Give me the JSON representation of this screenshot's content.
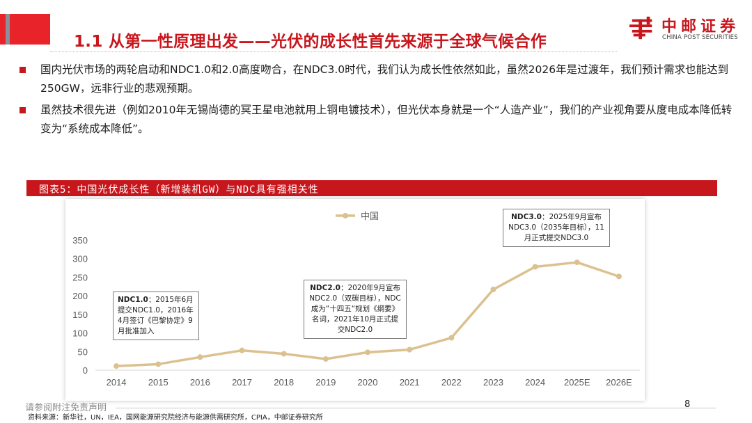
{
  "title": "1.1 从第一性原理出发——光伏的成长性首先来源于全球气候合作",
  "logo": {
    "cn": "中邮证券",
    "en": "CHINA POST SECURITIES"
  },
  "bullets": [
    "国内光伏市场的两轮启动和NDC1.0和2.0高度吻合，在NDC3.0时代，我们认为成长性依然如此，虽然2026年是过渡年，我们预计需求也能达到250GW，远非行业的悲观预期。",
    "虽然技术很先进（例如2010年无锡尚德的冥王星电池就用上铜电镀技术），但光伏本身就是一个“人造产业”，我们的产业视角要从度电成本降低转变为“系统成本降低”。"
  ],
  "figure_title": "图表5：中国光伏成长性（新增装机GW）与NDC具有强相关性",
  "chart_data": {
    "type": "line",
    "categories": [
      "2014",
      "2015",
      "2016",
      "2017",
      "2018",
      "2019",
      "2020",
      "2021",
      "2022",
      "2023",
      "2024",
      "2025E",
      "2026E"
    ],
    "series": [
      {
        "name": "中国",
        "values": [
          11,
          16,
          35,
          53,
          44,
          30,
          48,
          55,
          87,
          217,
          278,
          290,
          252
        ]
      }
    ],
    "yticks": [
      "0",
      "50",
      "100",
      "150",
      "200",
      "250",
      "300",
      "350"
    ],
    "ylim": [
      0,
      350
    ],
    "color": "#dcc190",
    "legend_position": "top-center",
    "grid": false,
    "annotations": [
      {
        "head": "NDC1.0",
        "body": "：2015年6月提交NDC1.0，2016年4月签订《巴黎协定》9月批准加入"
      },
      {
        "head": "NDC2.0",
        "body": "：2020年9月宣布NDC2.0（双碳目标），NDC成为“十四五“规划《纲要》名词，2021年10月正式提交NDC2.0"
      },
      {
        "head": "NDC3.0",
        "body": "：2025年9月宣布NDC3.0（2035年目标），11月正式提交NDC3.0"
      }
    ]
  },
  "disclaimer": "请参阅附注免责声明",
  "source": "资料来源：新华社，UN，IEA，国网能源研究院经济与能源供需研究所，CPIA，中邮证券研究所",
  "page_number": "8"
}
